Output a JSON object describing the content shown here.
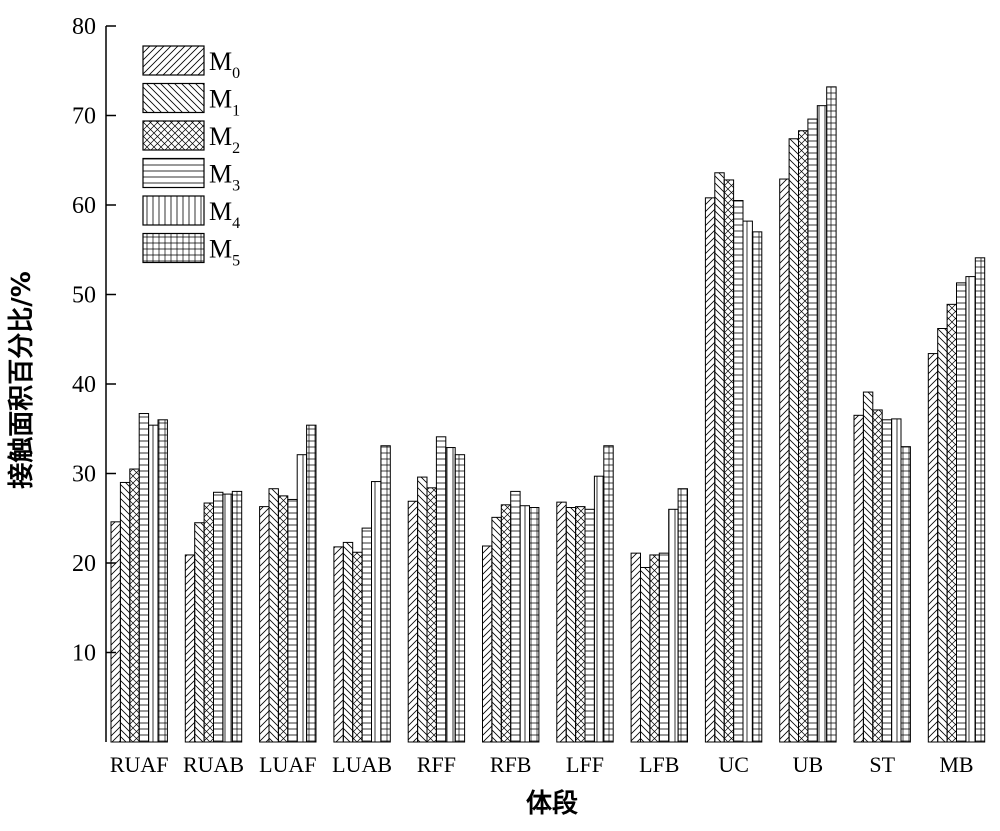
{
  "chart_data": {
    "type": "bar",
    "title": "",
    "xlabel": "体段",
    "ylabel": "接触面积百分比/%",
    "ylim": [
      0,
      80
    ],
    "yticks": [
      10,
      20,
      30,
      40,
      50,
      60,
      70,
      80
    ],
    "grid": false,
    "legend_position": "top-left",
    "categories": [
      "RUAF",
      "RUAB",
      "LUAF",
      "LUAB",
      "RFF",
      "RFB",
      "LFF",
      "LFB",
      "UC",
      "UB",
      "ST",
      "MB"
    ],
    "series": [
      {
        "name": "M",
        "sub": "0",
        "pattern": "diag-fwd",
        "values": [
          24.6,
          20.9,
          26.3,
          21.8,
          26.9,
          21.9,
          26.8,
          21.1,
          60.8,
          62.9,
          36.5,
          43.4
        ]
      },
      {
        "name": "M",
        "sub": "1",
        "pattern": "diag-back",
        "values": [
          29.0,
          24.5,
          28.3,
          22.3,
          29.6,
          25.1,
          26.2,
          19.5,
          63.6,
          67.4,
          39.1,
          46.2
        ]
      },
      {
        "name": "M",
        "sub": "2",
        "pattern": "crosshatch",
        "values": [
          30.5,
          26.7,
          27.5,
          21.2,
          28.4,
          26.5,
          26.3,
          20.9,
          62.8,
          68.3,
          37.1,
          48.9
        ]
      },
      {
        "name": "M",
        "sub": "3",
        "pattern": "horizontal",
        "values": [
          36.7,
          27.9,
          27.1,
          23.9,
          34.1,
          28.0,
          26.0,
          21.1,
          60.5,
          69.6,
          36.0,
          51.3
        ]
      },
      {
        "name": "M",
        "sub": "4",
        "pattern": "vertical",
        "values": [
          35.4,
          27.7,
          32.1,
          29.1,
          32.9,
          26.4,
          29.7,
          26.0,
          58.2,
          71.1,
          36.1,
          52.0
        ]
      },
      {
        "name": "M",
        "sub": "5",
        "pattern": "grid",
        "values": [
          36.0,
          28.0,
          35.4,
          33.1,
          32.1,
          26.2,
          33.1,
          28.3,
          57.0,
          73.2,
          33.0,
          54.1
        ]
      }
    ]
  }
}
